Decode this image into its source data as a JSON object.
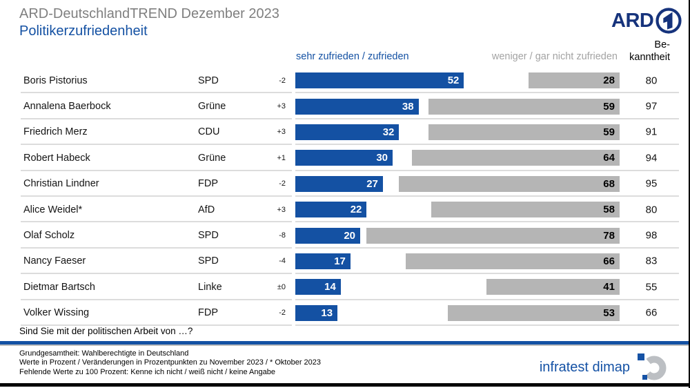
{
  "header": {
    "title": "ARD-DeutschlandTREND Dezember 2023",
    "subtitle": "Politikerzufriedenheit",
    "ard_logo_text": "ARD"
  },
  "columns": {
    "positive_label": "sehr zufrieden / zufrieden",
    "negative_label": "weniger / gar nicht zufrieden",
    "awareness_label_line1": "Be-",
    "awareness_label_line2": "kanntheit"
  },
  "chart_data": {
    "type": "bar",
    "orientation": "horizontal",
    "title": "Politikerzufriedenheit",
    "source_line": "ARD-DeutschlandTREND Dezember 2023",
    "unit": "Prozent",
    "xlim": [
      0,
      100
    ],
    "grid": false,
    "legend_position": "top",
    "series_labels": {
      "satisfied": "sehr zufrieden / zufrieden",
      "dissatisfied": "weniger / gar nicht zufrieden",
      "awareness": "Bekanntheit",
      "change": "Veränderung zu November 2023"
    },
    "rows": [
      {
        "name": "Boris Pistorius",
        "party": "SPD",
        "change": "-2",
        "satisfied": 52,
        "dissatisfied": 28,
        "awareness": 80
      },
      {
        "name": "Annalena Baerbock",
        "party": "Grüne",
        "change": "+3",
        "satisfied": 38,
        "dissatisfied": 59,
        "awareness": 97
      },
      {
        "name": "Friedrich Merz",
        "party": "CDU",
        "change": "+3",
        "satisfied": 32,
        "dissatisfied": 59,
        "awareness": 91
      },
      {
        "name": "Robert Habeck",
        "party": "Grüne",
        "change": "+1",
        "satisfied": 30,
        "dissatisfied": 64,
        "awareness": 94
      },
      {
        "name": "Christian Lindner",
        "party": "FDP",
        "change": "-2",
        "satisfied": 27,
        "dissatisfied": 68,
        "awareness": 95
      },
      {
        "name": "Alice Weidel*",
        "party": "AfD",
        "change": "+3",
        "satisfied": 22,
        "dissatisfied": 58,
        "awareness": 80
      },
      {
        "name": "Olaf Scholz",
        "party": "SPD",
        "change": "-8",
        "satisfied": 20,
        "dissatisfied": 78,
        "awareness": 98
      },
      {
        "name": "Nancy Faeser",
        "party": "SPD",
        "change": "-4",
        "satisfied": 17,
        "dissatisfied": 66,
        "awareness": 83
      },
      {
        "name": "Dietmar Bartsch",
        "party": "Linke",
        "change": "±0",
        "satisfied": 14,
        "dissatisfied": 41,
        "awareness": 55
      },
      {
        "name": "Volker Wissing",
        "party": "FDP",
        "change": "-2",
        "satisfied": 13,
        "dissatisfied": 53,
        "awareness": 66
      }
    ]
  },
  "footer": {
    "question": "Sind Sie mit der politischen Arbeit von …?",
    "notes": [
      "Grundgesamtheit: Wahlberechtigte in Deutschland",
      "Werte in Prozent / Veränderungen in Prozentpunkten zu November 2023 / * Oktober 2023",
      "Fehlende Werte zu 100 Prozent: Kenne ich nicht / weiß nicht / keine Angabe"
    ],
    "logo_text": "infratest dimap"
  },
  "colors": {
    "bar_blue": "#1451a3",
    "bar_gray": "#b5b5b5",
    "title_gray": "#7f7f7f",
    "negative_label_gray": "#a3a3a3",
    "ard_navy": "#16337c",
    "infratest_blue": "#1552a5",
    "separator_gray": "#dcdcdc"
  }
}
